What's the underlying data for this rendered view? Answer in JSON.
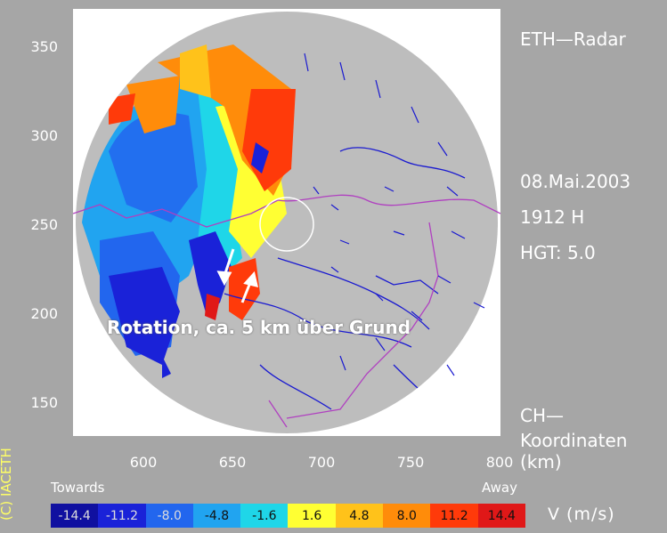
{
  "title": "ETH—Radar",
  "date": "08.Mai.2003",
  "time": "1912 H",
  "height": "HGT: 5.0",
  "coord_label_1": "CH—",
  "coord_label_2": "Koordinaten",
  "coord_unit": "(km)",
  "copyright": "(C) IACETH",
  "annotation": "Rotation, ca. 5 km über Grund",
  "legend": {
    "towards_label": "Towards",
    "away_label": "Away",
    "unit": "V  (m/s)",
    "cells": [
      {
        "label": "-14.4",
        "color": "#1010a0"
      },
      {
        "label": "-11.2",
        "color": "#1a22d8"
      },
      {
        "label": "-8.0",
        "color": "#2266ee"
      },
      {
        "label": "-4.8",
        "color": "#21a4f0"
      },
      {
        "label": "-1.6",
        "color": "#1fd6e8"
      },
      {
        "label": "1.6",
        "color": "#ffff33"
      },
      {
        "label": "4.8",
        "color": "#ffc21a"
      },
      {
        "label": "8.0",
        "color": "#ff8c0a"
      },
      {
        "label": "11.2",
        "color": "#ff3a0a"
      },
      {
        "label": "14.4",
        "color": "#e01818"
      }
    ]
  },
  "axes": {
    "y_ticks": [
      "350",
      "300",
      "250",
      "200",
      "150"
    ],
    "x_ticks": [
      "600",
      "650",
      "700",
      "750",
      "800"
    ]
  },
  "colors": {
    "background": "#a6a6a6",
    "radar_disk": "#bdbdbd",
    "rivers": "#1a1ad0",
    "borders": "#b040c0"
  }
}
